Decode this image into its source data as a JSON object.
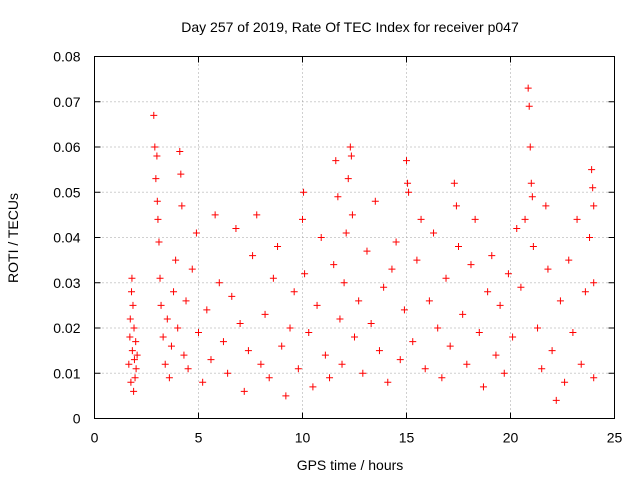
{
  "chart_data": {
    "type": "scatter",
    "title": "Day 257 of 2019, Rate Of TEC Index for receiver p047",
    "xlabel": "GPS time / hours",
    "ylabel": "ROTI / TECUs",
    "xlim": [
      0,
      25
    ],
    "ylim": [
      0,
      0.08
    ],
    "xticks": [
      "0",
      "5",
      "10",
      "15",
      "20",
      "25"
    ],
    "yticks": [
      "0",
      "0.01",
      "0.02",
      "0.03",
      "0.04",
      "0.05",
      "0.06",
      "0.07",
      "0.08"
    ],
    "grid": true,
    "marker": "plus",
    "color": "#ff0000",
    "series": [
      {
        "name": "ROTI",
        "points": [
          [
            1.65,
            0.012
          ],
          [
            1.7,
            0.018
          ],
          [
            1.72,
            0.022
          ],
          [
            1.75,
            0.008
          ],
          [
            1.78,
            0.028
          ],
          [
            1.8,
            0.031
          ],
          [
            1.82,
            0.015
          ],
          [
            1.85,
            0.025
          ],
          [
            1.88,
            0.006
          ],
          [
            1.9,
            0.02
          ],
          [
            1.92,
            0.013
          ],
          [
            1.95,
            0.009
          ],
          [
            1.98,
            0.017
          ],
          [
            2.0,
            0.011
          ],
          [
            2.05,
            0.014
          ],
          [
            2.85,
            0.067
          ],
          [
            2.9,
            0.06
          ],
          [
            2.95,
            0.053
          ],
          [
            3.0,
            0.058
          ],
          [
            3.02,
            0.048
          ],
          [
            3.05,
            0.044
          ],
          [
            3.1,
            0.039
          ],
          [
            3.15,
            0.031
          ],
          [
            3.2,
            0.025
          ],
          [
            3.3,
            0.018
          ],
          [
            3.4,
            0.012
          ],
          [
            3.5,
            0.022
          ],
          [
            3.6,
            0.009
          ],
          [
            3.7,
            0.016
          ],
          [
            3.8,
            0.028
          ],
          [
            3.9,
            0.035
          ],
          [
            4.0,
            0.02
          ],
          [
            4.1,
            0.059
          ],
          [
            4.15,
            0.054
          ],
          [
            4.2,
            0.047
          ],
          [
            4.3,
            0.014
          ],
          [
            4.4,
            0.026
          ],
          [
            4.5,
            0.011
          ],
          [
            4.7,
            0.033
          ],
          [
            4.9,
            0.041
          ],
          [
            5.0,
            0.019
          ],
          [
            5.2,
            0.008
          ],
          [
            5.4,
            0.024
          ],
          [
            5.6,
            0.013
          ],
          [
            5.8,
            0.045
          ],
          [
            6.0,
            0.03
          ],
          [
            6.2,
            0.017
          ],
          [
            6.4,
            0.01
          ],
          [
            6.6,
            0.027
          ],
          [
            6.8,
            0.042
          ],
          [
            7.0,
            0.021
          ],
          [
            7.2,
            0.006
          ],
          [
            7.4,
            0.015
          ],
          [
            7.6,
            0.036
          ],
          [
            7.8,
            0.045
          ],
          [
            8.0,
            0.012
          ],
          [
            8.2,
            0.023
          ],
          [
            8.4,
            0.009
          ],
          [
            8.6,
            0.031
          ],
          [
            8.8,
            0.038
          ],
          [
            9.0,
            0.016
          ],
          [
            9.2,
            0.005
          ],
          [
            9.4,
            0.02
          ],
          [
            9.6,
            0.028
          ],
          [
            9.8,
            0.011
          ],
          [
            10.0,
            0.044
          ],
          [
            10.05,
            0.05
          ],
          [
            10.1,
            0.032
          ],
          [
            10.3,
            0.019
          ],
          [
            10.5,
            0.007
          ],
          [
            10.7,
            0.025
          ],
          [
            10.9,
            0.04
          ],
          [
            11.1,
            0.014
          ],
          [
            11.3,
            0.009
          ],
          [
            11.5,
            0.034
          ],
          [
            11.6,
            0.057
          ],
          [
            11.7,
            0.049
          ],
          [
            11.8,
            0.022
          ],
          [
            11.9,
            0.012
          ],
          [
            12.0,
            0.03
          ],
          [
            12.1,
            0.041
          ],
          [
            12.2,
            0.053
          ],
          [
            12.3,
            0.06
          ],
          [
            12.35,
            0.058
          ],
          [
            12.4,
            0.045
          ],
          [
            12.5,
            0.018
          ],
          [
            12.7,
            0.026
          ],
          [
            12.9,
            0.01
          ],
          [
            13.1,
            0.037
          ],
          [
            13.3,
            0.021
          ],
          [
            13.5,
            0.048
          ],
          [
            13.7,
            0.015
          ],
          [
            13.9,
            0.029
          ],
          [
            14.1,
            0.008
          ],
          [
            14.3,
            0.033
          ],
          [
            14.5,
            0.039
          ],
          [
            14.7,
            0.013
          ],
          [
            14.9,
            0.024
          ],
          [
            15.0,
            0.057
          ],
          [
            15.05,
            0.052
          ],
          [
            15.1,
            0.05
          ],
          [
            15.3,
            0.017
          ],
          [
            15.5,
            0.035
          ],
          [
            15.7,
            0.044
          ],
          [
            15.9,
            0.011
          ],
          [
            16.1,
            0.026
          ],
          [
            16.3,
            0.041
          ],
          [
            16.5,
            0.02
          ],
          [
            16.7,
            0.009
          ],
          [
            16.9,
            0.031
          ],
          [
            17.1,
            0.016
          ],
          [
            17.3,
            0.052
          ],
          [
            17.4,
            0.047
          ],
          [
            17.5,
            0.038
          ],
          [
            17.7,
            0.023
          ],
          [
            17.9,
            0.012
          ],
          [
            18.1,
            0.034
          ],
          [
            18.3,
            0.044
          ],
          [
            18.5,
            0.019
          ],
          [
            18.7,
            0.007
          ],
          [
            18.9,
            0.028
          ],
          [
            19.1,
            0.036
          ],
          [
            19.3,
            0.014
          ],
          [
            19.5,
            0.025
          ],
          [
            19.7,
            0.01
          ],
          [
            19.9,
            0.032
          ],
          [
            20.1,
            0.018
          ],
          [
            20.3,
            0.042
          ],
          [
            20.5,
            0.029
          ],
          [
            20.7,
            0.044
          ],
          [
            20.85,
            0.073
          ],
          [
            20.9,
            0.069
          ],
          [
            20.95,
            0.06
          ],
          [
            21.0,
            0.052
          ],
          [
            21.05,
            0.049
          ],
          [
            21.1,
            0.038
          ],
          [
            21.3,
            0.02
          ],
          [
            21.5,
            0.011
          ],
          [
            21.7,
            0.047
          ],
          [
            21.8,
            0.033
          ],
          [
            22.0,
            0.015
          ],
          [
            22.2,
            0.004
          ],
          [
            22.4,
            0.026
          ],
          [
            22.6,
            0.008
          ],
          [
            22.8,
            0.035
          ],
          [
            23.0,
            0.019
          ],
          [
            23.2,
            0.044
          ],
          [
            23.4,
            0.012
          ],
          [
            23.6,
            0.028
          ],
          [
            23.8,
            0.04
          ],
          [
            23.9,
            0.055
          ],
          [
            23.95,
            0.051
          ],
          [
            24.0,
            0.047
          ],
          [
            24.0,
            0.03
          ],
          [
            24.0,
            0.009
          ]
        ]
      }
    ]
  }
}
